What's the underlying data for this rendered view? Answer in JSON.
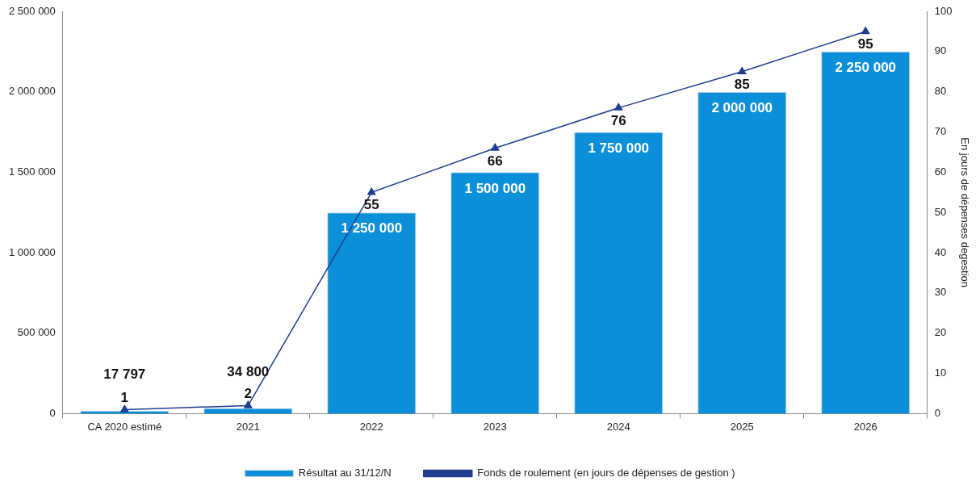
{
  "chart_data": {
    "type": "bar",
    "categories": [
      "CA 2020 estimé",
      "2021",
      "2022",
      "2023",
      "2024",
      "2025",
      "2026"
    ],
    "series": [
      {
        "name": "Résultat au 31/12/N",
        "axis": "y",
        "color": "#0b8fd9",
        "values": [
          17797,
          34800,
          1250000,
          1500000,
          1750000,
          2000000,
          2250000
        ],
        "value_labels": [
          "17 797",
          "34 800",
          "1 250 000",
          "1 500 000",
          "1 750 000",
          "2 000 000",
          "2 250 000"
        ]
      },
      {
        "name": "Fonds de roulement (en jours de dépenses de gestion )",
        "type": "line",
        "axis": "y2",
        "color": "#1f3d8f",
        "marker": "triangle",
        "values": [
          1,
          2,
          55,
          66,
          76,
          85,
          95
        ],
        "value_labels": [
          "1",
          "2",
          "55",
          "66",
          "76",
          "85",
          "95"
        ]
      }
    ],
    "y2label": "En jours de dépenses degestion",
    "ylim": [
      0,
      2500000
    ],
    "yticks": [
      {
        "value": 0,
        "label": "0"
      },
      {
        "value": 500000,
        "label": "500 000"
      },
      {
        "value": 1000000,
        "label": "1 000 000"
      },
      {
        "value": 1500000,
        "label": "1 500 000"
      },
      {
        "value": 2000000,
        "label": "2 000 000"
      },
      {
        "value": 2500000,
        "label": "2 500 000"
      }
    ],
    "y2lim": [
      0,
      100
    ],
    "y2ticks": [
      0,
      10,
      20,
      30,
      40,
      50,
      60,
      70,
      80,
      90,
      100
    ],
    "grid": false,
    "legend": "bottom"
  }
}
